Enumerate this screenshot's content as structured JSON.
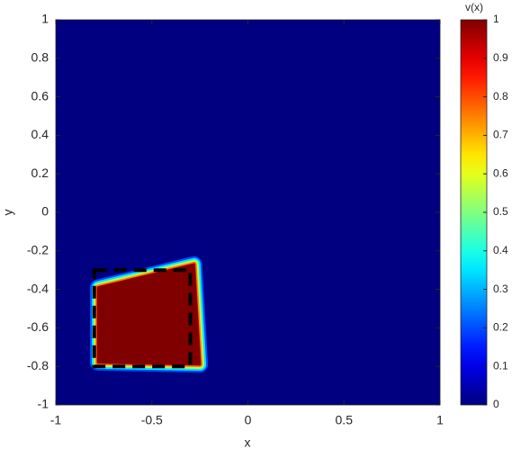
{
  "chart_data": {
    "type": "heatmap",
    "xlabel": "x",
    "ylabel": "y",
    "colorbar_label": "v(x)",
    "xlim": [
      -1,
      1
    ],
    "ylim": [
      -1,
      1
    ],
    "xticks": [
      -1,
      -0.5,
      0,
      0.5,
      1
    ],
    "yticks": [
      -1,
      -0.8,
      -0.6,
      -0.4,
      -0.2,
      0,
      0.2,
      0.4,
      0.6,
      0.8,
      1
    ],
    "colormap": "jet",
    "clim": [
      0,
      1
    ],
    "cticks": [
      0,
      0.1,
      0.2,
      0.3,
      0.4,
      0.5,
      0.6,
      0.7,
      0.8,
      0.9,
      1
    ],
    "background_value": 0,
    "region": {
      "value": 1,
      "x": [
        -0.78,
        -0.28,
        -0.25,
        -0.78
      ],
      "y": [
        -0.39,
        -0.27,
        -0.79,
        -0.78
      ]
    },
    "box": {
      "x": [
        -0.8,
        -0.3
      ],
      "y": [
        -0.8,
        -0.3
      ]
    }
  }
}
